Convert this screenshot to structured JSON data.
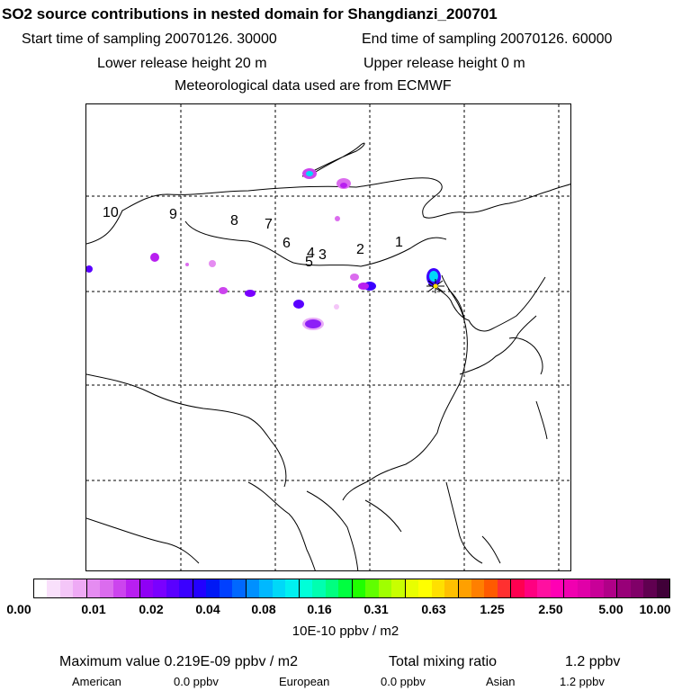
{
  "header": {
    "title": "SO2 source contributions in nested domain for Shangdianzi_200701",
    "start_time": "Start time of sampling 20070126. 30000",
    "end_time": "End time of sampling 20070126. 60000",
    "lower_release": "Lower release height   20 m",
    "upper_release": "Upper release height    0 m",
    "met_data": "Meteorological data used are from ECMWF"
  },
  "map": {
    "region_numbers": [
      "10",
      "9",
      "8",
      "7",
      "6",
      "4",
      "5",
      "3",
      "2",
      "1"
    ]
  },
  "colorbar": {
    "unit_label": "10E-10 ppbv / m2",
    "tick_labels": [
      "0.00",
      "0.01",
      "0.02",
      "0.04",
      "0.08",
      "0.16",
      "0.31",
      "0.63",
      "1.25",
      "2.50",
      "5.00",
      "10.00"
    ],
    "colors": [
      "#ffffff",
      "#f9e0fb",
      "#f4c6f8",
      "#eeaaf5",
      "#e58cf1",
      "#db6cee",
      "#cc44ee",
      "#b81ff0",
      "#8f00f5",
      "#7a00ff",
      "#5a00ff",
      "#3a00ff",
      "#2200ff",
      "#0018f5",
      "#0040ff",
      "#0068ff",
      "#0090ff",
      "#00b8ff",
      "#00d8f8",
      "#00f0f0",
      "#00ffd8",
      "#00ffb0",
      "#00ff80",
      "#00ff40",
      "#20ff00",
      "#60ff00",
      "#a0ff00",
      "#c8ff00",
      "#e8ff00",
      "#ffff00",
      "#ffe000",
      "#ffc000",
      "#ffa000",
      "#ff7f00",
      "#ff5a00",
      "#ff3030",
      "#ff0050",
      "#ff0080",
      "#ff10a0",
      "#ff00b4",
      "#f000b0",
      "#e000a8",
      "#c80098",
      "#b00088",
      "#980078",
      "#800068",
      "#600050",
      "#400038"
    ]
  },
  "stats": {
    "max_value": "Maximum value  0.219E-09 ppbv / m2",
    "total_mixing": "Total mixing ratio",
    "total_value": "1.2 ppbv",
    "american_label": "American",
    "american_value": "0.0 ppbv",
    "european_label": "European",
    "european_value": "0.0 ppbv",
    "asian_label": "Asian",
    "asian_value": "1.2 ppbv"
  }
}
